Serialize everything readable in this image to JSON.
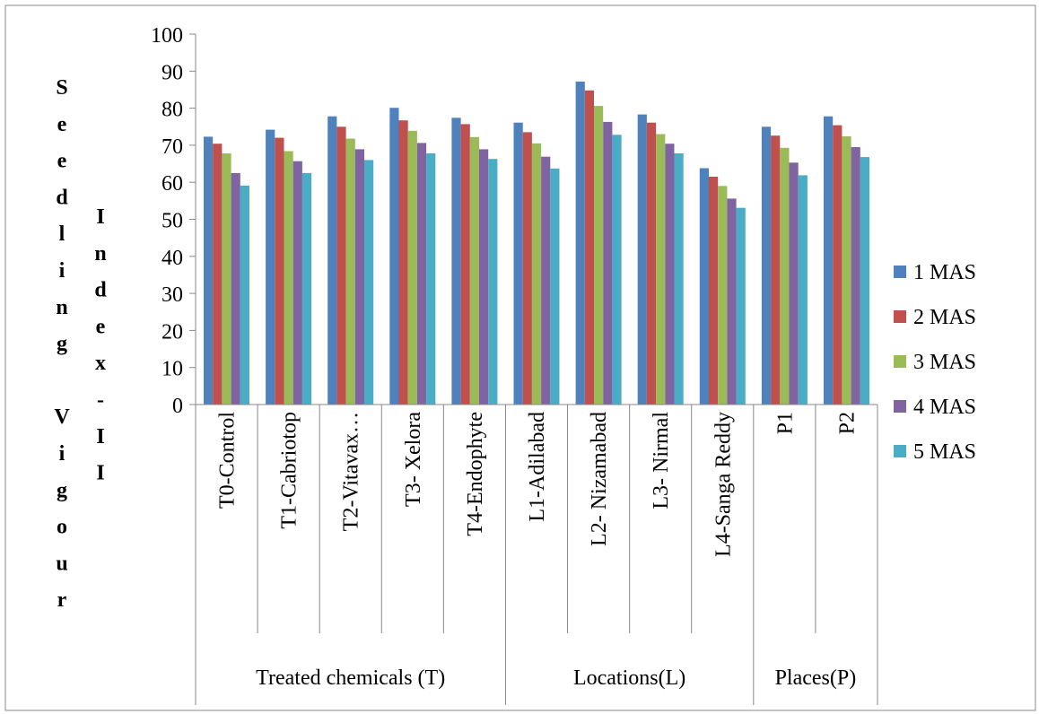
{
  "chart_data": {
    "type": "bar",
    "ylabel_part1": "Seedling Vigour",
    "ylabel_part2": "Index-II",
    "ylim": [
      0,
      100
    ],
    "yticks": [
      "0",
      "10",
      "20",
      "30",
      "40",
      "50",
      "60",
      "70",
      "80",
      "90",
      "100"
    ],
    "grid": false,
    "legend_position": "right",
    "categories": [
      "T0-Control",
      "T1-Cabriotop",
      "T2-Vitavax…",
      "T3- Xelora",
      "T4-Endophyte",
      "L1-Adilabad",
      "L2- Nizamabad",
      "L3- Nirmal",
      "L4-Sanga Reddy",
      "P1",
      "P2"
    ],
    "groups": [
      {
        "label": "Treated chemicals (T)",
        "count": 5
      },
      {
        "label": "Locations(L)",
        "count": 4
      },
      {
        "label": "Places(P)",
        "count": 2
      }
    ],
    "series": [
      {
        "name": "1 MAS",
        "color": "#4F81BD",
        "values": [
          72.3,
          74.2,
          77.8,
          80.1,
          77.4,
          76.1,
          87.2,
          78.3,
          63.8,
          75.0,
          77.8
        ]
      },
      {
        "name": "2 MAS",
        "color": "#C0504D",
        "values": [
          70.4,
          72.0,
          75.0,
          76.7,
          75.7,
          73.5,
          84.8,
          76.1,
          61.5,
          72.6,
          75.4
        ]
      },
      {
        "name": "3 MAS",
        "color": "#9BBB59",
        "values": [
          67.8,
          68.4,
          71.8,
          73.9,
          72.2,
          70.5,
          80.6,
          73.0,
          59.0,
          69.3,
          72.4
        ]
      },
      {
        "name": "4 MAS",
        "color": "#8064A2",
        "values": [
          62.5,
          65.7,
          68.9,
          70.6,
          68.9,
          66.9,
          76.3,
          70.4,
          55.6,
          65.3,
          69.5
        ]
      },
      {
        "name": "5 MAS",
        "color": "#4BACC6",
        "values": [
          59.1,
          62.5,
          66.0,
          67.8,
          66.3,
          63.7,
          72.8,
          67.8,
          53.1,
          61.9,
          66.8
        ]
      }
    ]
  }
}
